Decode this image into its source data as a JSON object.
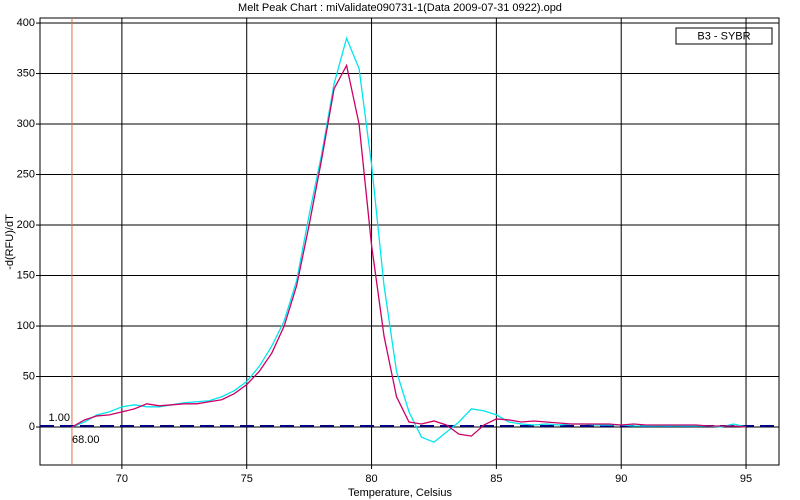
{
  "chart_data": {
    "type": "line",
    "title": "Melt Peak Chart : miValidate090731-1(Data 2009-07-31 0922).opd",
    "x_label": "Temperature, Celsius",
    "y_label": "-d(RFU)/dT",
    "legend_label": "B3 - SYBR",
    "x": [
      68,
      68.5,
      69,
      69.5,
      70,
      70.5,
      71,
      71.5,
      72,
      72.5,
      73,
      73.5,
      74,
      74.5,
      75,
      75.5,
      76,
      76.5,
      77,
      77.5,
      78,
      78.5,
      79,
      79.5,
      80,
      80.5,
      81,
      81.5,
      82,
      82.5,
      83,
      83.5,
      84,
      84.5,
      85,
      85.5,
      86,
      86.5,
      87,
      87.5,
      88,
      88.5,
      89,
      89.5,
      90,
      90.5,
      91,
      91.5,
      92,
      92.5,
      93,
      93.5,
      94,
      94.5,
      95
    ],
    "series": [
      {
        "color": "#00e5ee",
        "values": [
          0,
          5,
          12,
          15,
          20,
          22,
          20,
          20,
          22,
          24,
          25,
          26,
          30,
          36,
          45,
          60,
          80,
          105,
          145,
          210,
          270,
          340,
          385,
          355,
          260,
          140,
          55,
          15,
          -10,
          -15,
          -5,
          5,
          18,
          16,
          12,
          5,
          3,
          2,
          3,
          2,
          3,
          3,
          2,
          2,
          2,
          1,
          1,
          1,
          1,
          1,
          1,
          1,
          0,
          3,
          0
        ]
      },
      {
        "color": "#cc0066",
        "values": [
          0,
          7,
          11,
          12,
          15,
          18,
          23,
          21,
          22,
          23,
          23,
          25,
          27,
          33,
          42,
          55,
          73,
          100,
          140,
          200,
          265,
          335,
          358,
          300,
          180,
          90,
          30,
          5,
          3,
          6,
          2,
          -7,
          -9,
          2,
          8,
          7,
          5,
          6,
          5,
          4,
          3,
          3,
          3,
          3,
          2,
          3,
          2,
          2,
          2,
          2,
          2,
          1,
          1,
          1,
          0
        ]
      }
    ],
    "threshold": {
      "value": 1,
      "label": "1.00"
    },
    "marker": {
      "value": 68,
      "label": "68.00"
    },
    "xlim": [
      66.72,
      96.32
    ],
    "ylim": [
      -37.6,
      405
    ],
    "xticks": [
      70,
      75,
      80,
      85,
      90,
      95
    ],
    "yticks": [
      0,
      50,
      100,
      150,
      200,
      250,
      300,
      350,
      400
    ],
    "grid": true
  }
}
